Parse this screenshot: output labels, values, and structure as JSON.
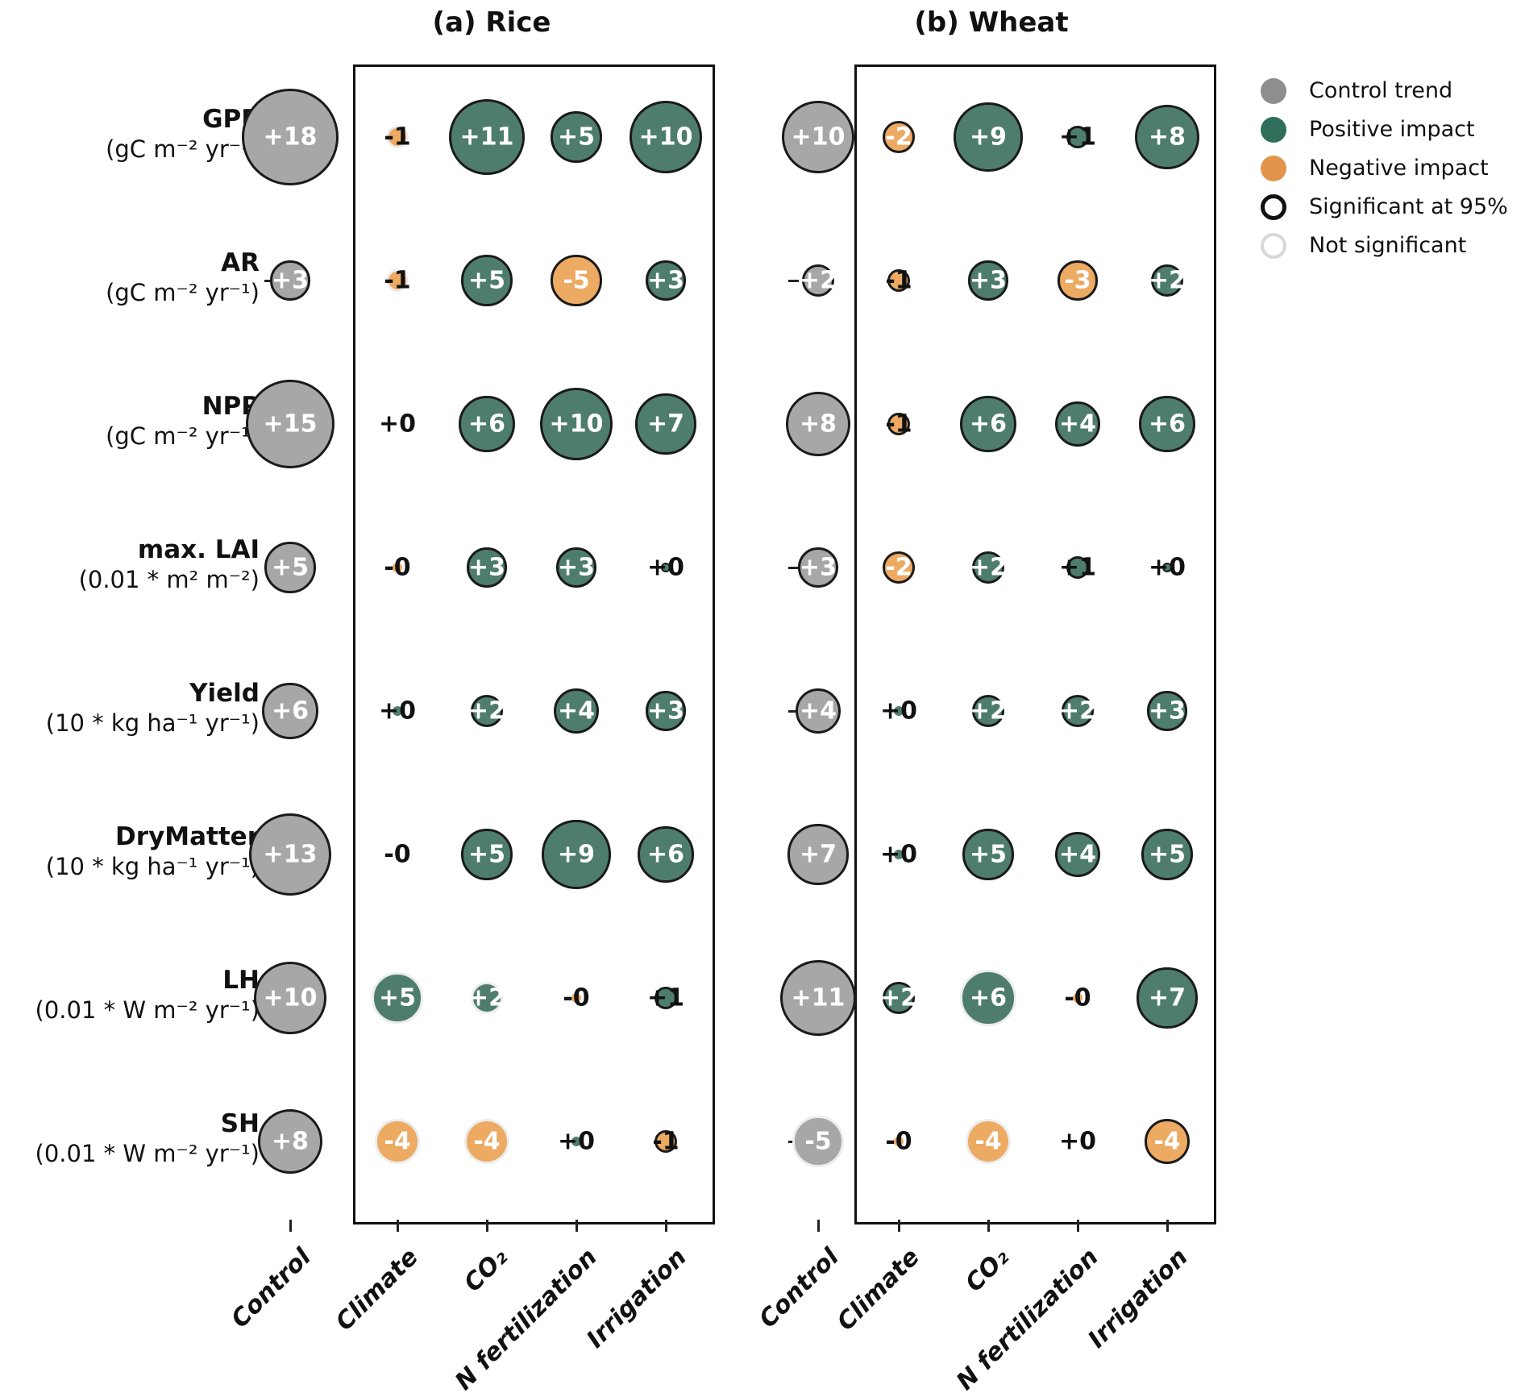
{
  "figure": {
    "panel_titles": {
      "rice": "(a) Rice",
      "wheat": "(b) Wheat"
    },
    "legend": {
      "items": [
        {
          "label": "Control trend",
          "swatch": "dot",
          "color": "#8e8e8e"
        },
        {
          "label": "Positive impact",
          "swatch": "dot",
          "color": "#2f6e5a"
        },
        {
          "label": "Negative impact",
          "swatch": "dot",
          "color": "#e2954a"
        },
        {
          "label": "Significant at 95%",
          "swatch": "ring",
          "color": "#111111"
        },
        {
          "label": "Not significant",
          "swatch": "ring",
          "color": "#d8d8d8"
        }
      ]
    },
    "colors": {
      "control_bubble": "#a7a7a7",
      "positive_bubble": "#4e7d6e",
      "negative_bubble": "#ecaa63",
      "significant_edge": "#1a1a1a",
      "not_significant_edge": "#ececec",
      "label_inside": "#ffffff",
      "label_outside": "#111111"
    }
  },
  "chart_data": {
    "type": "bubble",
    "description": "Bubble matrix of trends per variable (rows) and driver (columns) for two crops; bubble size = |value|, color = sign of impact (gray = control trend), edge = significance at 95%.",
    "drivers": [
      "Control",
      "Climate",
      "CO₂",
      "N fertilization",
      "Irrigation"
    ],
    "variables": [
      {
        "name": "GPP",
        "unit": "(gC m⁻² yr⁻¹)"
      },
      {
        "name": "AR",
        "unit": "(gC m⁻² yr⁻¹)"
      },
      {
        "name": "NPP",
        "unit": "(gC m⁻² yr⁻¹)"
      },
      {
        "name": "max. LAI",
        "unit": "(0.01 * m² m⁻²)"
      },
      {
        "name": "Yield",
        "unit": "(10 * kg ha⁻¹ yr⁻¹)"
      },
      {
        "name": "DryMatter",
        "unit": "(10 * kg ha⁻¹ yr⁻¹)"
      },
      {
        "name": "LH",
        "unit": "(0.01 * W m⁻² yr⁻¹)"
      },
      {
        "name": "SH",
        "unit": "(0.01 * W m⁻² yr⁻¹)"
      }
    ],
    "panels": [
      {
        "key": "rice",
        "title": "(a) Rice",
        "rows": [
          [
            {
              "label": "+18",
              "value": 18,
              "kind": "control",
              "significant": true,
              "bubble": true
            },
            {
              "label": "-1",
              "value": 1,
              "kind": "negative",
              "significant": false,
              "bubble": true
            },
            {
              "label": "+11",
              "value": 11,
              "kind": "positive",
              "significant": true,
              "bubble": true
            },
            {
              "label": "+5",
              "value": 5,
              "kind": "positive",
              "significant": true,
              "bubble": true
            },
            {
              "label": "+10",
              "value": 10,
              "kind": "positive",
              "significant": true,
              "bubble": true
            }
          ],
          [
            {
              "label": "+3",
              "value": 3,
              "kind": "control",
              "significant": true,
              "bubble": true
            },
            {
              "label": "-1",
              "value": 1,
              "kind": "negative",
              "significant": false,
              "bubble": true
            },
            {
              "label": "+5",
              "value": 5,
              "kind": "positive",
              "significant": true,
              "bubble": true
            },
            {
              "label": "-5",
              "value": 5,
              "kind": "negative",
              "significant": true,
              "bubble": true
            },
            {
              "label": "+3",
              "value": 3,
              "kind": "positive",
              "significant": true,
              "bubble": true
            }
          ],
          [
            {
              "label": "+15",
              "value": 15,
              "kind": "control",
              "significant": true,
              "bubble": true
            },
            {
              "label": "+0",
              "value": 0,
              "kind": "none",
              "significant": false,
              "bubble": false
            },
            {
              "label": "+6",
              "value": 6,
              "kind": "positive",
              "significant": true,
              "bubble": true
            },
            {
              "label": "+10",
              "value": 10,
              "kind": "positive",
              "significant": true,
              "bubble": true
            },
            {
              "label": "+7",
              "value": 7,
              "kind": "positive",
              "significant": true,
              "bubble": true
            }
          ],
          [
            {
              "label": "+5",
              "value": 5,
              "kind": "control",
              "significant": true,
              "bubble": true
            },
            {
              "label": "-0",
              "value": 0,
              "kind": "negative",
              "significant": false,
              "bubble": true
            },
            {
              "label": "+3",
              "value": 3,
              "kind": "positive",
              "significant": true,
              "bubble": true
            },
            {
              "label": "+3",
              "value": 3,
              "kind": "positive",
              "significant": true,
              "bubble": true
            },
            {
              "label": "+0",
              "value": 0,
              "kind": "positive",
              "significant": true,
              "bubble": true
            }
          ],
          [
            {
              "label": "+6",
              "value": 6,
              "kind": "control",
              "significant": true,
              "bubble": true
            },
            {
              "label": "+0",
              "value": 0,
              "kind": "positive",
              "significant": false,
              "bubble": true
            },
            {
              "label": "+2",
              "value": 2,
              "kind": "positive",
              "significant": true,
              "bubble": true
            },
            {
              "label": "+4",
              "value": 4,
              "kind": "positive",
              "significant": true,
              "bubble": true
            },
            {
              "label": "+3",
              "value": 3,
              "kind": "positive",
              "significant": true,
              "bubble": true
            }
          ],
          [
            {
              "label": "+13",
              "value": 13,
              "kind": "control",
              "significant": true,
              "bubble": true
            },
            {
              "label": "-0",
              "value": 0,
              "kind": "none",
              "significant": false,
              "bubble": false
            },
            {
              "label": "+5",
              "value": 5,
              "kind": "positive",
              "significant": true,
              "bubble": true
            },
            {
              "label": "+9",
              "value": 9,
              "kind": "positive",
              "significant": true,
              "bubble": true
            },
            {
              "label": "+6",
              "value": 6,
              "kind": "positive",
              "significant": true,
              "bubble": true
            }
          ],
          [
            {
              "label": "+10",
              "value": 10,
              "kind": "control",
              "significant": true,
              "bubble": true
            },
            {
              "label": "+5",
              "value": 5,
              "kind": "positive",
              "significant": false,
              "bubble": true
            },
            {
              "label": "+2",
              "value": 2,
              "kind": "positive",
              "significant": false,
              "bubble": true
            },
            {
              "label": "-0",
              "value": 0,
              "kind": "negative",
              "significant": false,
              "bubble": true
            },
            {
              "label": "+1",
              "value": 1,
              "kind": "positive",
              "significant": true,
              "bubble": true
            }
          ],
          [
            {
              "label": "+8",
              "value": 8,
              "kind": "control",
              "significant": true,
              "bubble": true
            },
            {
              "label": "-4",
              "value": 4,
              "kind": "negative",
              "significant": false,
              "bubble": true
            },
            {
              "label": "-4",
              "value": 4,
              "kind": "negative",
              "significant": false,
              "bubble": true
            },
            {
              "label": "+0",
              "value": 0,
              "kind": "positive",
              "significant": false,
              "bubble": true
            },
            {
              "label": "-1",
              "value": 1,
              "kind": "negative",
              "significant": true,
              "bubble": true
            }
          ]
        ]
      },
      {
        "key": "wheat",
        "title": "(b) Wheat",
        "rows": [
          [
            {
              "label": "+10",
              "value": 10,
              "kind": "control",
              "significant": true,
              "bubble": true
            },
            {
              "label": "-2",
              "value": 2,
              "kind": "negative",
              "significant": true,
              "bubble": true
            },
            {
              "label": "+9",
              "value": 9,
              "kind": "positive",
              "significant": true,
              "bubble": true
            },
            {
              "label": "+1",
              "value": 1,
              "kind": "positive",
              "significant": true,
              "bubble": true
            },
            {
              "label": "+8",
              "value": 8,
              "kind": "positive",
              "significant": true,
              "bubble": true
            }
          ],
          [
            {
              "label": "+2",
              "value": 2,
              "kind": "control",
              "significant": true,
              "bubble": true
            },
            {
              "label": "-1",
              "value": 1,
              "kind": "negative",
              "significant": true,
              "bubble": true
            },
            {
              "label": "+3",
              "value": 3,
              "kind": "positive",
              "significant": true,
              "bubble": true
            },
            {
              "label": "-3",
              "value": 3,
              "kind": "negative",
              "significant": true,
              "bubble": true
            },
            {
              "label": "+2",
              "value": 2,
              "kind": "positive",
              "significant": true,
              "bubble": true
            }
          ],
          [
            {
              "label": "+8",
              "value": 8,
              "kind": "control",
              "significant": true,
              "bubble": true
            },
            {
              "label": "-1",
              "value": 1,
              "kind": "negative",
              "significant": true,
              "bubble": true
            },
            {
              "label": "+6",
              "value": 6,
              "kind": "positive",
              "significant": true,
              "bubble": true
            },
            {
              "label": "+4",
              "value": 4,
              "kind": "positive",
              "significant": true,
              "bubble": true
            },
            {
              "label": "+6",
              "value": 6,
              "kind": "positive",
              "significant": true,
              "bubble": true
            }
          ],
          [
            {
              "label": "+3",
              "value": 3,
              "kind": "control",
              "significant": true,
              "bubble": true
            },
            {
              "label": "-2",
              "value": 2,
              "kind": "negative",
              "significant": true,
              "bubble": true
            },
            {
              "label": "+2",
              "value": 2,
              "kind": "positive",
              "significant": true,
              "bubble": true
            },
            {
              "label": "+1",
              "value": 1,
              "kind": "positive",
              "significant": true,
              "bubble": true
            },
            {
              "label": "+0",
              "value": 0,
              "kind": "positive",
              "significant": true,
              "bubble": true
            }
          ],
          [
            {
              "label": "+4",
              "value": 4,
              "kind": "control",
              "significant": true,
              "bubble": true
            },
            {
              "label": "+0",
              "value": 0,
              "kind": "positive",
              "significant": false,
              "bubble": true
            },
            {
              "label": "+2",
              "value": 2,
              "kind": "positive",
              "significant": true,
              "bubble": true
            },
            {
              "label": "+2",
              "value": 2,
              "kind": "positive",
              "significant": true,
              "bubble": true
            },
            {
              "label": "+3",
              "value": 3,
              "kind": "positive",
              "significant": true,
              "bubble": true
            }
          ],
          [
            {
              "label": "+7",
              "value": 7,
              "kind": "control",
              "significant": true,
              "bubble": true
            },
            {
              "label": "+0",
              "value": 0,
              "kind": "positive",
              "significant": false,
              "bubble": true
            },
            {
              "label": "+5",
              "value": 5,
              "kind": "positive",
              "significant": true,
              "bubble": true
            },
            {
              "label": "+4",
              "value": 4,
              "kind": "positive",
              "significant": true,
              "bubble": true
            },
            {
              "label": "+5",
              "value": 5,
              "kind": "positive",
              "significant": true,
              "bubble": true
            }
          ],
          [
            {
              "label": "+11",
              "value": 11,
              "kind": "control",
              "significant": true,
              "bubble": true
            },
            {
              "label": "+2",
              "value": 2,
              "kind": "positive",
              "significant": true,
              "bubble": true
            },
            {
              "label": "+6",
              "value": 6,
              "kind": "positive",
              "significant": false,
              "bubble": true
            },
            {
              "label": "-0",
              "value": 0,
              "kind": "negative",
              "significant": false,
              "bubble": true
            },
            {
              "label": "+7",
              "value": 7,
              "kind": "positive",
              "significant": true,
              "bubble": true
            }
          ],
          [
            {
              "label": "-5",
              "value": 5,
              "kind": "control",
              "significant": false,
              "bubble": true
            },
            {
              "label": "-0",
              "value": 0,
              "kind": "negative",
              "significant": false,
              "bubble": true
            },
            {
              "label": "-4",
              "value": 4,
              "kind": "negative",
              "significant": false,
              "bubble": true
            },
            {
              "label": "+0",
              "value": 0,
              "kind": "none",
              "significant": false,
              "bubble": false
            },
            {
              "label": "-4",
              "value": 4,
              "kind": "negative",
              "significant": true,
              "bubble": true
            }
          ]
        ]
      }
    ]
  }
}
